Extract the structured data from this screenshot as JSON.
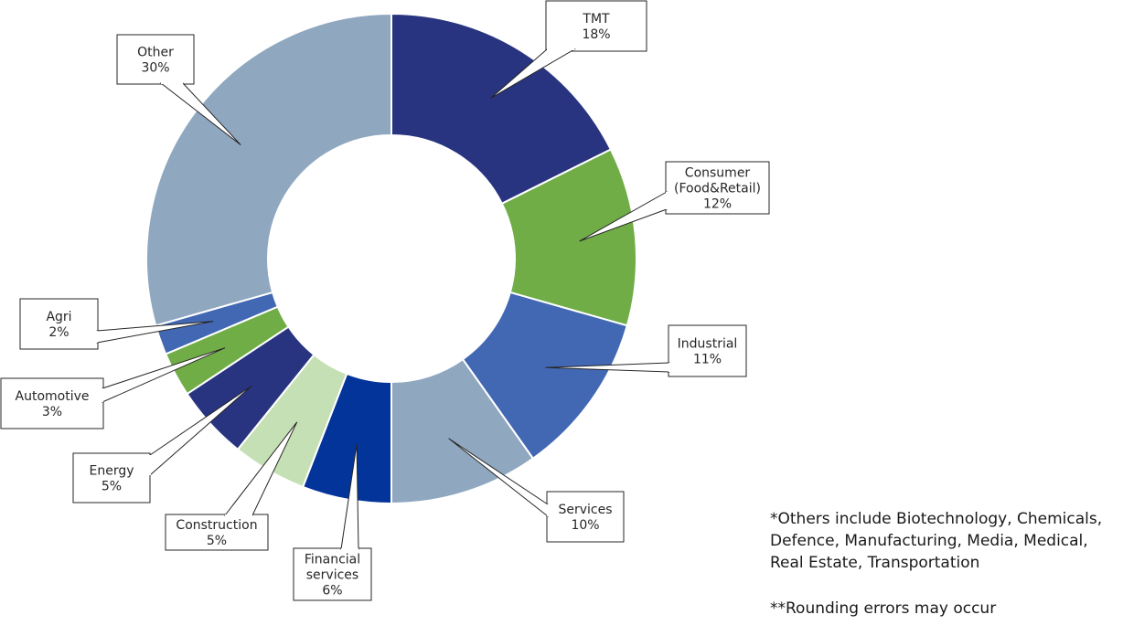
{
  "chart_data": {
    "type": "pie",
    "donut": true,
    "unit": "%",
    "slices": [
      {
        "label": [
          "TMT"
        ],
        "value": 18,
        "value_label": "18%",
        "color": "#283480"
      },
      {
        "label": [
          "Consumer",
          "(Food&Retail)"
        ],
        "value": 12,
        "value_label": "12%",
        "color": "#70ad47"
      },
      {
        "label": [
          "Industrial"
        ],
        "value": 11,
        "value_label": "11%",
        "color": "#4268b4"
      },
      {
        "label": [
          "Services"
        ],
        "value": 10,
        "value_label": "10%",
        "color": "#8fa8c0"
      },
      {
        "label": [
          "Financial",
          "services"
        ],
        "value": 6,
        "value_label": "6%",
        "color": "#03349a"
      },
      {
        "label": [
          "Construction"
        ],
        "value": 5,
        "value_label": "5%",
        "color": "#c5e0b4"
      },
      {
        "label": [
          "Energy"
        ],
        "value": 5,
        "value_label": "5%",
        "color": "#283480"
      },
      {
        "label": [
          "Automotive"
        ],
        "value": 3,
        "value_label": "3%",
        "color": "#70ad47"
      },
      {
        "label": [
          "Agri"
        ],
        "value": 2,
        "value_label": "2%",
        "color": "#4268b4"
      },
      {
        "label": [
          "Other"
        ],
        "value": 30,
        "value_label": "30%",
        "color": "#8fa8c0"
      }
    ],
    "legend": "none",
    "label_style": "callout boxes"
  },
  "notes": {
    "others_footnote": "*Others include Biotechnology, Chemicals, Defence, Manufacturing, Media, Medical, Real Estate, Transportation",
    "rounding_footnote": "**Rounding errors may occur"
  }
}
